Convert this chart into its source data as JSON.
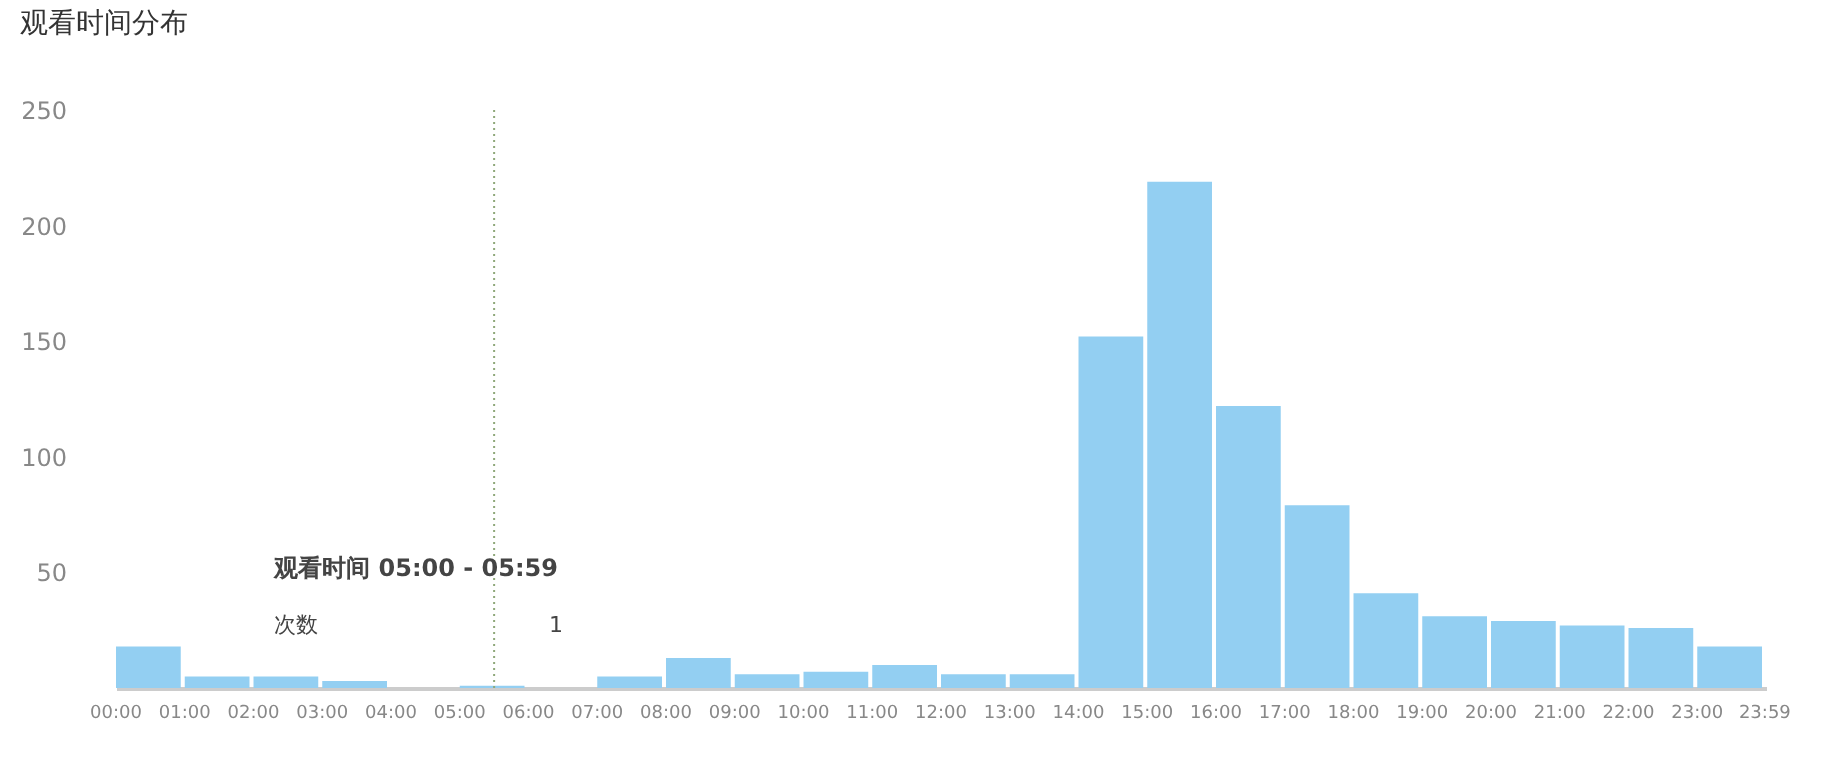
{
  "chart_data": {
    "type": "histogram",
    "title": "观看时间分布",
    "bins": [
      0,
      1,
      2,
      3,
      4,
      5,
      6,
      7,
      8,
      9,
      10,
      11,
      12,
      13,
      14,
      15,
      16,
      17,
      18,
      19,
      20,
      21,
      22,
      23,
      24
    ],
    "values": [
      18,
      5,
      5,
      3,
      0,
      1,
      0,
      5,
      13,
      6,
      7,
      10,
      6,
      6,
      152,
      219,
      122,
      79,
      41,
      31,
      29,
      27,
      26,
      18
    ],
    "color": "#93cff2",
    "xlim": [
      0,
      24
    ],
    "xticks": [
      {
        "value": 0,
        "label": "00:00"
      },
      {
        "value": 1,
        "label": "01:00"
      },
      {
        "value": 2,
        "label": "02:00"
      },
      {
        "value": 3,
        "label": "03:00"
      },
      {
        "value": 4,
        "label": "04:00"
      },
      {
        "value": 5,
        "label": "05:00"
      },
      {
        "value": 6,
        "label": "06:00"
      },
      {
        "value": 7,
        "label": "07:00"
      },
      {
        "value": 8,
        "label": "08:00"
      },
      {
        "value": 9,
        "label": "09:00"
      },
      {
        "value": 10,
        "label": "10:00"
      },
      {
        "value": 11,
        "label": "11:00"
      },
      {
        "value": 12,
        "label": "12:00"
      },
      {
        "value": 13,
        "label": "13:00"
      },
      {
        "value": 14,
        "label": "14:00"
      },
      {
        "value": 15,
        "label": "15:00"
      },
      {
        "value": 16,
        "label": "16:00"
      },
      {
        "value": 17,
        "label": "17:00"
      },
      {
        "value": 18,
        "label": "18:00"
      },
      {
        "value": 19,
        "label": "19:00"
      },
      {
        "value": 20,
        "label": "20:00"
      },
      {
        "value": 21,
        "label": "21:00"
      },
      {
        "value": 22,
        "label": "22:00"
      },
      {
        "value": 23,
        "label": "23:00"
      },
      {
        "value": 23.9833,
        "label": "23:59"
      }
    ],
    "ylim": [
      0,
      250
    ],
    "yticks": [
      50,
      100,
      150,
      200,
      250
    ],
    "grid": false,
    "ref_lines": [
      {
        "axis": "x",
        "value": 5.5,
        "color": "#8fa87a",
        "line_style": "dotted"
      }
    ],
    "annotations": [
      "观看时间 05:00 - 05:59",
      "次数",
      "1"
    ]
  }
}
